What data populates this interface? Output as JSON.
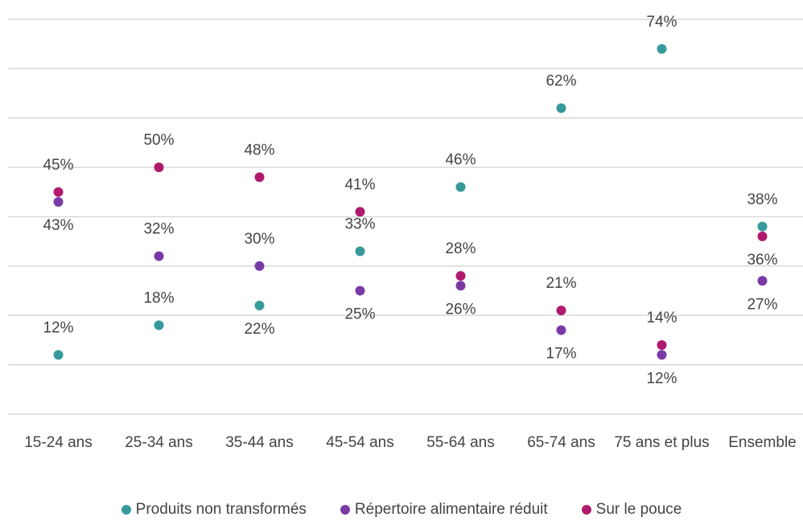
{
  "chart_data": {
    "type": "dot",
    "categories": [
      "15-24 ans",
      "25-34 ans",
      "35-44 ans",
      "45-54 ans",
      "55-64 ans",
      "65-74 ans",
      "75 ans et plus",
      "Ensemble"
    ],
    "series": [
      {
        "name": "Produits non transformés",
        "color": "#36999a",
        "values": [
          12,
          18,
          22,
          33,
          46,
          62,
          74,
          38
        ],
        "value_labels": [
          "12%",
          "18%",
          "22%",
          "33%",
          "46%",
          "62%",
          "74%",
          "38%"
        ]
      },
      {
        "name": "Répertoire alimentaire réduit",
        "color": "#7a3aa6",
        "values": [
          43,
          32,
          30,
          25,
          26,
          17,
          12,
          27
        ],
        "value_labels": [
          "43%",
          "32%",
          "30%",
          "25%",
          "26%",
          "17%",
          "12%",
          "27%"
        ]
      },
      {
        "name": "Sur le pouce",
        "color": "#b01a6c",
        "values": [
          45,
          50,
          48,
          41,
          28,
          21,
          14,
          36
        ],
        "value_labels": [
          "45%",
          "50%",
          "48%",
          "41%",
          "28%",
          "21%",
          "14%",
          "36%"
        ]
      }
    ],
    "ylim": [
      0,
      80
    ],
    "yticks": [
      0,
      10,
      20,
      30,
      40,
      50,
      60,
      70,
      80
    ],
    "grid": true,
    "legend": "bottom"
  }
}
